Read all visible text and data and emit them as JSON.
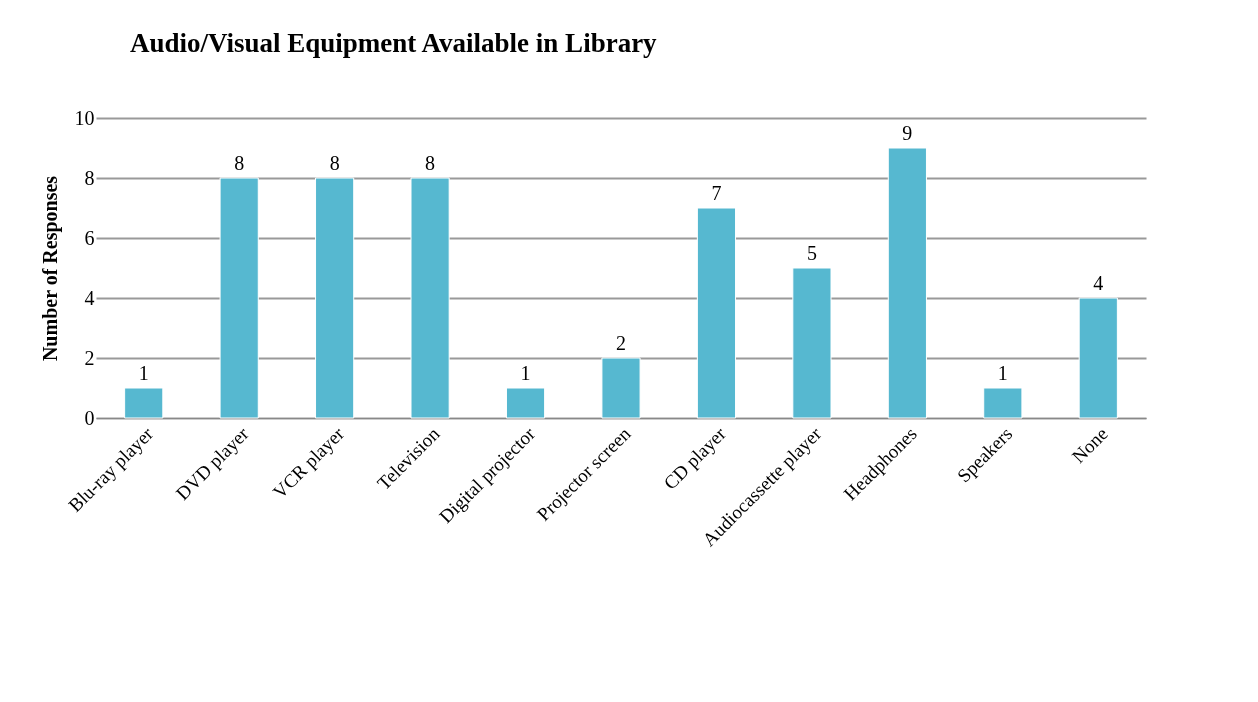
{
  "chart_data": {
    "type": "bar",
    "title": "Audio/Visual Equipment Available in Library",
    "ylabel": "Number of Responses",
    "categories": [
      "Blu-ray player",
      "DVD player",
      "VCR player",
      "Television",
      "Digital projector",
      "Projector screen",
      "CD player",
      "Audiocassette player",
      "Headphones",
      "Speakers",
      "None"
    ],
    "values": [
      1,
      8,
      8,
      8,
      1,
      2,
      7,
      5,
      9,
      1,
      4
    ],
    "color": "#56b8d0",
    "ylim": [
      0,
      10
    ],
    "yticks": [
      0,
      2,
      4,
      6,
      8,
      10
    ],
    "grid": true,
    "data_labels": true
  }
}
